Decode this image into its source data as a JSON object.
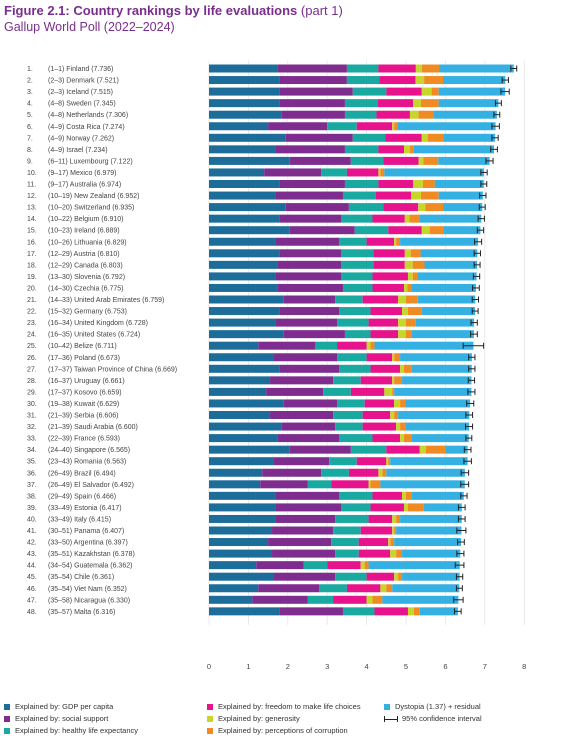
{
  "header": {
    "title_bold": "Figure 2.1: Country rankings by life evaluations",
    "title_rest": " (part 1)",
    "subtitle": "Gallup World Poll (2022–2024)"
  },
  "colors": {
    "gdp": "#1d6d9b",
    "social": "#7f2c8f",
    "health": "#1aa9a0",
    "freedom": "#e7138c",
    "generosity": "#c7d62c",
    "corruption": "#f08a22",
    "dystopia": "#34b0e2",
    "ci": "#222222"
  },
  "chart_data": {
    "type": "bar",
    "orientation": "horizontal",
    "stacked": true,
    "xlim": [
      0,
      8
    ],
    "x_ticks": [
      "0",
      "1",
      "2",
      "3",
      "4",
      "5",
      "6",
      "7",
      "8"
    ],
    "grid": true,
    "legend_position": "bottom",
    "legend": [
      {
        "key": "gdp",
        "label": "Explained by: GDP per capita"
      },
      {
        "key": "freedom",
        "label": "Explained by: freedom to make life choices"
      },
      {
        "key": "dystopia",
        "label": "Dystopia (1.37) + residual"
      },
      {
        "key": "social",
        "label": "Explained by: social support"
      },
      {
        "key": "generosity",
        "label": "Explained by: generosity"
      },
      {
        "key": "ci",
        "label": "95% confidence interval"
      },
      {
        "key": "health",
        "label": "Explained by: healthy life expectancy"
      },
      {
        "key": "corruption",
        "label": "Explained by: perceptions of corruption"
      }
    ],
    "rows": [
      {
        "rank": "1.",
        "label": "(1–1) Finland (7.736)",
        "total": 7.736,
        "gdp": 1.75,
        "social": 1.75,
        "health": 0.8,
        "freedom": 0.95,
        "generosity": 0.15,
        "corruption": 0.45,
        "ci": [
          7.66,
          7.81
        ]
      },
      {
        "rank": "2.",
        "label": "(2–3) Denmark (7.521)",
        "total": 7.521,
        "gdp": 1.8,
        "social": 1.7,
        "health": 0.82,
        "freedom": 0.92,
        "generosity": 0.22,
        "corruption": 0.48,
        "ci": [
          7.44,
          7.6
        ]
      },
      {
        "rank": "3.",
        "label": "(2–3) Iceland (7.515)",
        "total": 7.515,
        "gdp": 1.8,
        "social": 1.85,
        "health": 0.85,
        "freedom": 0.9,
        "generosity": 0.25,
        "corruption": 0.18,
        "ci": [
          7.41,
          7.62
        ]
      },
      {
        "rank": "4.",
        "label": "(4–8) Sweden (7.345)",
        "total": 7.345,
        "gdp": 1.8,
        "social": 1.65,
        "health": 0.83,
        "freedom": 0.9,
        "generosity": 0.2,
        "corruption": 0.45,
        "ci": [
          7.27,
          7.42
        ]
      },
      {
        "rank": "5.",
        "label": "(4–8) Netherlands (7.306)",
        "total": 7.306,
        "gdp": 1.85,
        "social": 1.6,
        "health": 0.8,
        "freedom": 0.85,
        "generosity": 0.22,
        "corruption": 0.38,
        "ci": [
          7.23,
          7.38
        ]
      },
      {
        "rank": "6.",
        "label": "(4–9) Costa Rica (7.274)",
        "total": 7.274,
        "gdp": 1.5,
        "social": 1.5,
        "health": 0.75,
        "freedom": 0.9,
        "generosity": 0.05,
        "corruption": 0.08,
        "ci": [
          7.18,
          7.37
        ]
      },
      {
        "rank": "7.",
        "label": "(4–9) Norway (7.262)",
        "total": 7.262,
        "gdp": 1.95,
        "social": 1.7,
        "health": 0.82,
        "freedom": 0.93,
        "generosity": 0.15,
        "corruption": 0.4,
        "ci": [
          7.18,
          7.34
        ]
      },
      {
        "rank": "8.",
        "label": "(4–9) Israel (7.234)",
        "total": 7.234,
        "gdp": 1.7,
        "social": 1.75,
        "health": 0.85,
        "freedom": 0.65,
        "generosity": 0.15,
        "corruption": 0.1,
        "ci": [
          7.15,
          7.32
        ]
      },
      {
        "rank": "9.",
        "label": "(6–11) Luxembourg (7.122)",
        "total": 7.122,
        "gdp": 2.05,
        "social": 1.55,
        "health": 0.82,
        "freedom": 0.9,
        "generosity": 0.12,
        "corruption": 0.38,
        "ci": [
          7.03,
          7.21
        ]
      },
      {
        "rank": "10.",
        "label": "(9–17) Mexico (6.979)",
        "total": 6.979,
        "gdp": 1.4,
        "social": 1.45,
        "health": 0.65,
        "freedom": 0.8,
        "generosity": 0.05,
        "corruption": 0.1,
        "ci": [
          6.9,
          7.06
        ]
      },
      {
        "rank": "11.",
        "label": "(9–17) Australia (6.974)",
        "total": 6.974,
        "gdp": 1.8,
        "social": 1.65,
        "health": 0.85,
        "freedom": 0.88,
        "generosity": 0.25,
        "corruption": 0.3,
        "ci": [
          6.9,
          7.05
        ]
      },
      {
        "rank": "12.",
        "label": "(10–19) New Zealand (6.952)",
        "total": 6.952,
        "gdp": 1.7,
        "social": 1.7,
        "health": 0.83,
        "freedom": 0.9,
        "generosity": 0.25,
        "corruption": 0.45,
        "ci": [
          6.87,
          7.03
        ]
      },
      {
        "rank": "13.",
        "label": "(10–20) Switzerland (6.935)",
        "total": 6.935,
        "gdp": 1.95,
        "social": 1.6,
        "health": 0.88,
        "freedom": 0.88,
        "generosity": 0.18,
        "corruption": 0.45,
        "ci": [
          6.86,
          7.01
        ]
      },
      {
        "rank": "14.",
        "label": "(10–22) Belgium (6.910)",
        "total": 6.91,
        "gdp": 1.8,
        "social": 1.55,
        "health": 0.8,
        "freedom": 0.82,
        "generosity": 0.12,
        "corruption": 0.25,
        "ci": [
          6.83,
          6.99
        ]
      },
      {
        "rank": "15.",
        "label": "(10–23) Ireland (6.889)",
        "total": 6.889,
        "gdp": 2.05,
        "social": 1.65,
        "health": 0.85,
        "freedom": 0.85,
        "generosity": 0.2,
        "corruption": 0.35,
        "ci": [
          6.81,
          6.97
        ]
      },
      {
        "rank": "16.",
        "label": "(10–26) Lithuania (6.829)",
        "total": 6.829,
        "gdp": 1.7,
        "social": 1.6,
        "health": 0.7,
        "freedom": 0.7,
        "generosity": 0.05,
        "corruption": 0.1,
        "ci": [
          6.74,
          6.92
        ]
      },
      {
        "rank": "17.",
        "label": "(12–29) Austria (6.810)",
        "total": 6.81,
        "gdp": 1.8,
        "social": 1.55,
        "health": 0.82,
        "freedom": 0.8,
        "generosity": 0.15,
        "corruption": 0.25,
        "ci": [
          6.73,
          6.89
        ]
      },
      {
        "rank": "18.",
        "label": "(12–29) Canada (6.803)",
        "total": 6.803,
        "gdp": 1.75,
        "social": 1.6,
        "health": 0.82,
        "freedom": 0.8,
        "generosity": 0.2,
        "corruption": 0.3,
        "ci": [
          6.73,
          6.88
        ]
      },
      {
        "rank": "19.",
        "label": "(13–30) Slovenia (6.792)",
        "total": 6.792,
        "gdp": 1.7,
        "social": 1.65,
        "health": 0.8,
        "freedom": 0.9,
        "generosity": 0.12,
        "corruption": 0.12,
        "ci": [
          6.71,
          6.87
        ]
      },
      {
        "rank": "20.",
        "label": "(14–30) Czechia (6.775)",
        "total": 6.775,
        "gdp": 1.75,
        "social": 1.65,
        "health": 0.75,
        "freedom": 0.8,
        "generosity": 0.08,
        "corruption": 0.1,
        "ci": [
          6.69,
          6.86
        ]
      },
      {
        "rank": "21.",
        "label": "(14–33) United Arab Emirates (6.759)",
        "total": 6.759,
        "gdp": 1.9,
        "social": 1.3,
        "health": 0.7,
        "freedom": 0.9,
        "generosity": 0.2,
        "corruption": 0.3,
        "ci": [
          6.68,
          6.84
        ]
      },
      {
        "rank": "22.",
        "label": "(15–32) Germany (6.753)",
        "total": 6.753,
        "gdp": 1.8,
        "social": 1.5,
        "health": 0.8,
        "freedom": 0.8,
        "generosity": 0.15,
        "corruption": 0.35,
        "ci": [
          6.68,
          6.83
        ]
      },
      {
        "rank": "23.",
        "label": "(16–34) United Kingdom (6.728)",
        "total": 6.728,
        "gdp": 1.7,
        "social": 1.55,
        "health": 0.8,
        "freedom": 0.75,
        "generosity": 0.2,
        "corruption": 0.25,
        "ci": [
          6.65,
          6.81
        ]
      },
      {
        "rank": "24.",
        "label": "(16–35) United States (6.724)",
        "total": 6.724,
        "gdp": 1.9,
        "social": 1.55,
        "health": 0.65,
        "freedom": 0.7,
        "generosity": 0.2,
        "corruption": 0.15,
        "ci": [
          6.64,
          6.81
        ]
      },
      {
        "rank": "25.",
        "label": "(10–42) Belize (6.711)",
        "total": 6.711,
        "gdp": 1.25,
        "social": 1.45,
        "health": 0.55,
        "freedom": 0.75,
        "generosity": 0.1,
        "corruption": 0.1,
        "ci": [
          6.45,
          6.97
        ]
      },
      {
        "rank": "26.",
        "label": "(17–36) Poland (6.673)",
        "total": 6.673,
        "gdp": 1.65,
        "social": 1.6,
        "health": 0.75,
        "freedom": 0.65,
        "generosity": 0.05,
        "corruption": 0.15,
        "ci": [
          6.59,
          6.75
        ]
      },
      {
        "rank": "27.",
        "label": "(17–37) Taiwan Province of China (6.669)",
        "total": 6.669,
        "gdp": 1.8,
        "social": 1.5,
        "health": 0.8,
        "freedom": 0.75,
        "generosity": 0.1,
        "corruption": 0.2,
        "ci": [
          6.59,
          6.75
        ]
      },
      {
        "rank": "28.",
        "label": "(16–37) Uruguay (6.661)",
        "total": 6.661,
        "gdp": 1.55,
        "social": 1.6,
        "health": 0.7,
        "freedom": 0.8,
        "generosity": 0.05,
        "corruption": 0.2,
        "ci": [
          6.58,
          6.74
        ]
      },
      {
        "rank": "29.",
        "label": "(17–37) Kosovo (6.659)",
        "total": 6.659,
        "gdp": 1.45,
        "social": 1.45,
        "health": 0.7,
        "freedom": 0.85,
        "generosity": 0.2,
        "corruption": 0.05,
        "ci": [
          6.57,
          6.75
        ]
      },
      {
        "rank": "30.",
        "label": "(19–38) Kuwait (6.629)",
        "total": 6.629,
        "gdp": 1.9,
        "social": 1.35,
        "health": 0.7,
        "freedom": 0.75,
        "generosity": 0.15,
        "corruption": 0.15,
        "ci": [
          6.54,
          6.72
        ]
      },
      {
        "rank": "31.",
        "label": "(21–39) Serbia (6.606)",
        "total": 6.606,
        "gdp": 1.55,
        "social": 1.6,
        "health": 0.75,
        "freedom": 0.7,
        "generosity": 0.1,
        "corruption": 0.1,
        "ci": [
          6.52,
          6.69
        ]
      },
      {
        "rank": "32.",
        "label": "(21–39) Saudi Arabia (6.600)",
        "total": 6.6,
        "gdp": 1.85,
        "social": 1.35,
        "health": 0.7,
        "freedom": 0.85,
        "generosity": 0.1,
        "corruption": 0.15,
        "ci": [
          6.51,
          6.69
        ]
      },
      {
        "rank": "33.",
        "label": "(22–39) France (6.593)",
        "total": 6.593,
        "gdp": 1.75,
        "social": 1.55,
        "health": 0.85,
        "freedom": 0.7,
        "generosity": 0.1,
        "corruption": 0.2,
        "ci": [
          6.52,
          6.67
        ]
      },
      {
        "rank": "34.",
        "label": "(24–40) Singapore (6.565)",
        "total": 6.565,
        "gdp": 2.05,
        "social": 1.55,
        "health": 0.9,
        "freedom": 0.85,
        "generosity": 0.15,
        "corruption": 0.5,
        "ci": [
          6.48,
          6.65
        ]
      },
      {
        "rank": "35.",
        "label": "(23–43) Romania (6.563)",
        "total": 6.563,
        "gdp": 1.65,
        "social": 1.4,
        "health": 0.7,
        "freedom": 0.75,
        "generosity": 0.05,
        "corruption": 0.05,
        "ci": [
          6.47,
          6.66
        ]
      },
      {
        "rank": "36.",
        "label": "(26–49) Brazil (6.494)",
        "total": 6.494,
        "gdp": 1.35,
        "social": 1.5,
        "health": 0.7,
        "freedom": 0.75,
        "generosity": 0.1,
        "corruption": 0.1,
        "ci": [
          6.4,
          6.59
        ]
      },
      {
        "rank": "37.",
        "label": "(26–49) El Salvador (6.492)",
        "total": 6.492,
        "gdp": 1.3,
        "social": 1.2,
        "health": 0.6,
        "freedom": 0.95,
        "generosity": 0.05,
        "corruption": 0.25,
        "ci": [
          6.39,
          6.59
        ]
      },
      {
        "rank": "38.",
        "label": "(29–49) Spain (6.466)",
        "total": 6.466,
        "gdp": 1.7,
        "social": 1.6,
        "health": 0.85,
        "freedom": 0.75,
        "generosity": 0.1,
        "corruption": 0.15,
        "ci": [
          6.39,
          6.55
        ]
      },
      {
        "rank": "39.",
        "label": "(33–49) Estonia (6.417)",
        "total": 6.417,
        "gdp": 1.7,
        "social": 1.65,
        "health": 0.75,
        "freedom": 0.85,
        "generosity": 0.1,
        "corruption": 0.4,
        "ci": [
          6.33,
          6.5
        ]
      },
      {
        "rank": "40.",
        "label": "(33–49) Italy (6.415)",
        "total": 6.415,
        "gdp": 1.7,
        "social": 1.5,
        "health": 0.85,
        "freedom": 0.6,
        "generosity": 0.1,
        "corruption": 0.1,
        "ci": [
          6.33,
          6.5
        ]
      },
      {
        "rank": "41.",
        "label": "(30–51) Panama (6.407)",
        "total": 6.407,
        "gdp": 1.6,
        "social": 1.55,
        "health": 0.7,
        "freedom": 0.8,
        "generosity": 0.05,
        "corruption": 0.05,
        "ci": [
          6.29,
          6.52
        ]
      },
      {
        "rank": "42.",
        "label": "(33–50) Argentina (6.397)",
        "total": 6.397,
        "gdp": 1.5,
        "social": 1.6,
        "health": 0.7,
        "freedom": 0.75,
        "generosity": 0.05,
        "corruption": 0.1,
        "ci": [
          6.31,
          6.48
        ]
      },
      {
        "rank": "43.",
        "label": "(35–51) Kazakhstan (6.378)",
        "total": 6.378,
        "gdp": 1.6,
        "social": 1.6,
        "health": 0.6,
        "freedom": 0.8,
        "generosity": 0.15,
        "corruption": 0.15,
        "ci": [
          6.29,
          6.47
        ]
      },
      {
        "rank": "44.",
        "label": "(34–54) Guatemala (6.362)",
        "total": 6.362,
        "gdp": 1.2,
        "social": 1.2,
        "health": 0.6,
        "freedom": 0.85,
        "generosity": 0.1,
        "corruption": 0.1,
        "ci": [
          6.25,
          6.47
        ]
      },
      {
        "rank": "45.",
        "label": "(35–54) Chile (6.361)",
        "total": 6.361,
        "gdp": 1.65,
        "social": 1.55,
        "health": 0.8,
        "freedom": 0.7,
        "generosity": 0.1,
        "corruption": 0.1,
        "ci": [
          6.28,
          6.44
        ]
      },
      {
        "rank": "46.",
        "label": "(35–54) Viet Nam (6.352)",
        "total": 6.352,
        "gdp": 1.25,
        "social": 1.55,
        "health": 0.7,
        "freedom": 0.85,
        "generosity": 0.15,
        "corruption": 0.15,
        "ci": [
          6.28,
          6.43
        ]
      },
      {
        "rank": "47.",
        "label": "(35–58) Nicaragua (6.330)",
        "total": 6.33,
        "gdp": 1.1,
        "social": 1.4,
        "health": 0.65,
        "freedom": 0.85,
        "generosity": 0.15,
        "corruption": 0.25,
        "ci": [
          6.21,
          6.45
        ]
      },
      {
        "rank": "48.",
        "label": "(35–57) Malta (6.316)",
        "total": 6.316,
        "gdp": 1.8,
        "social": 1.6,
        "health": 0.8,
        "freedom": 0.85,
        "generosity": 0.15,
        "corruption": 0.15,
        "ci": [
          6.23,
          6.4
        ]
      }
    ]
  }
}
